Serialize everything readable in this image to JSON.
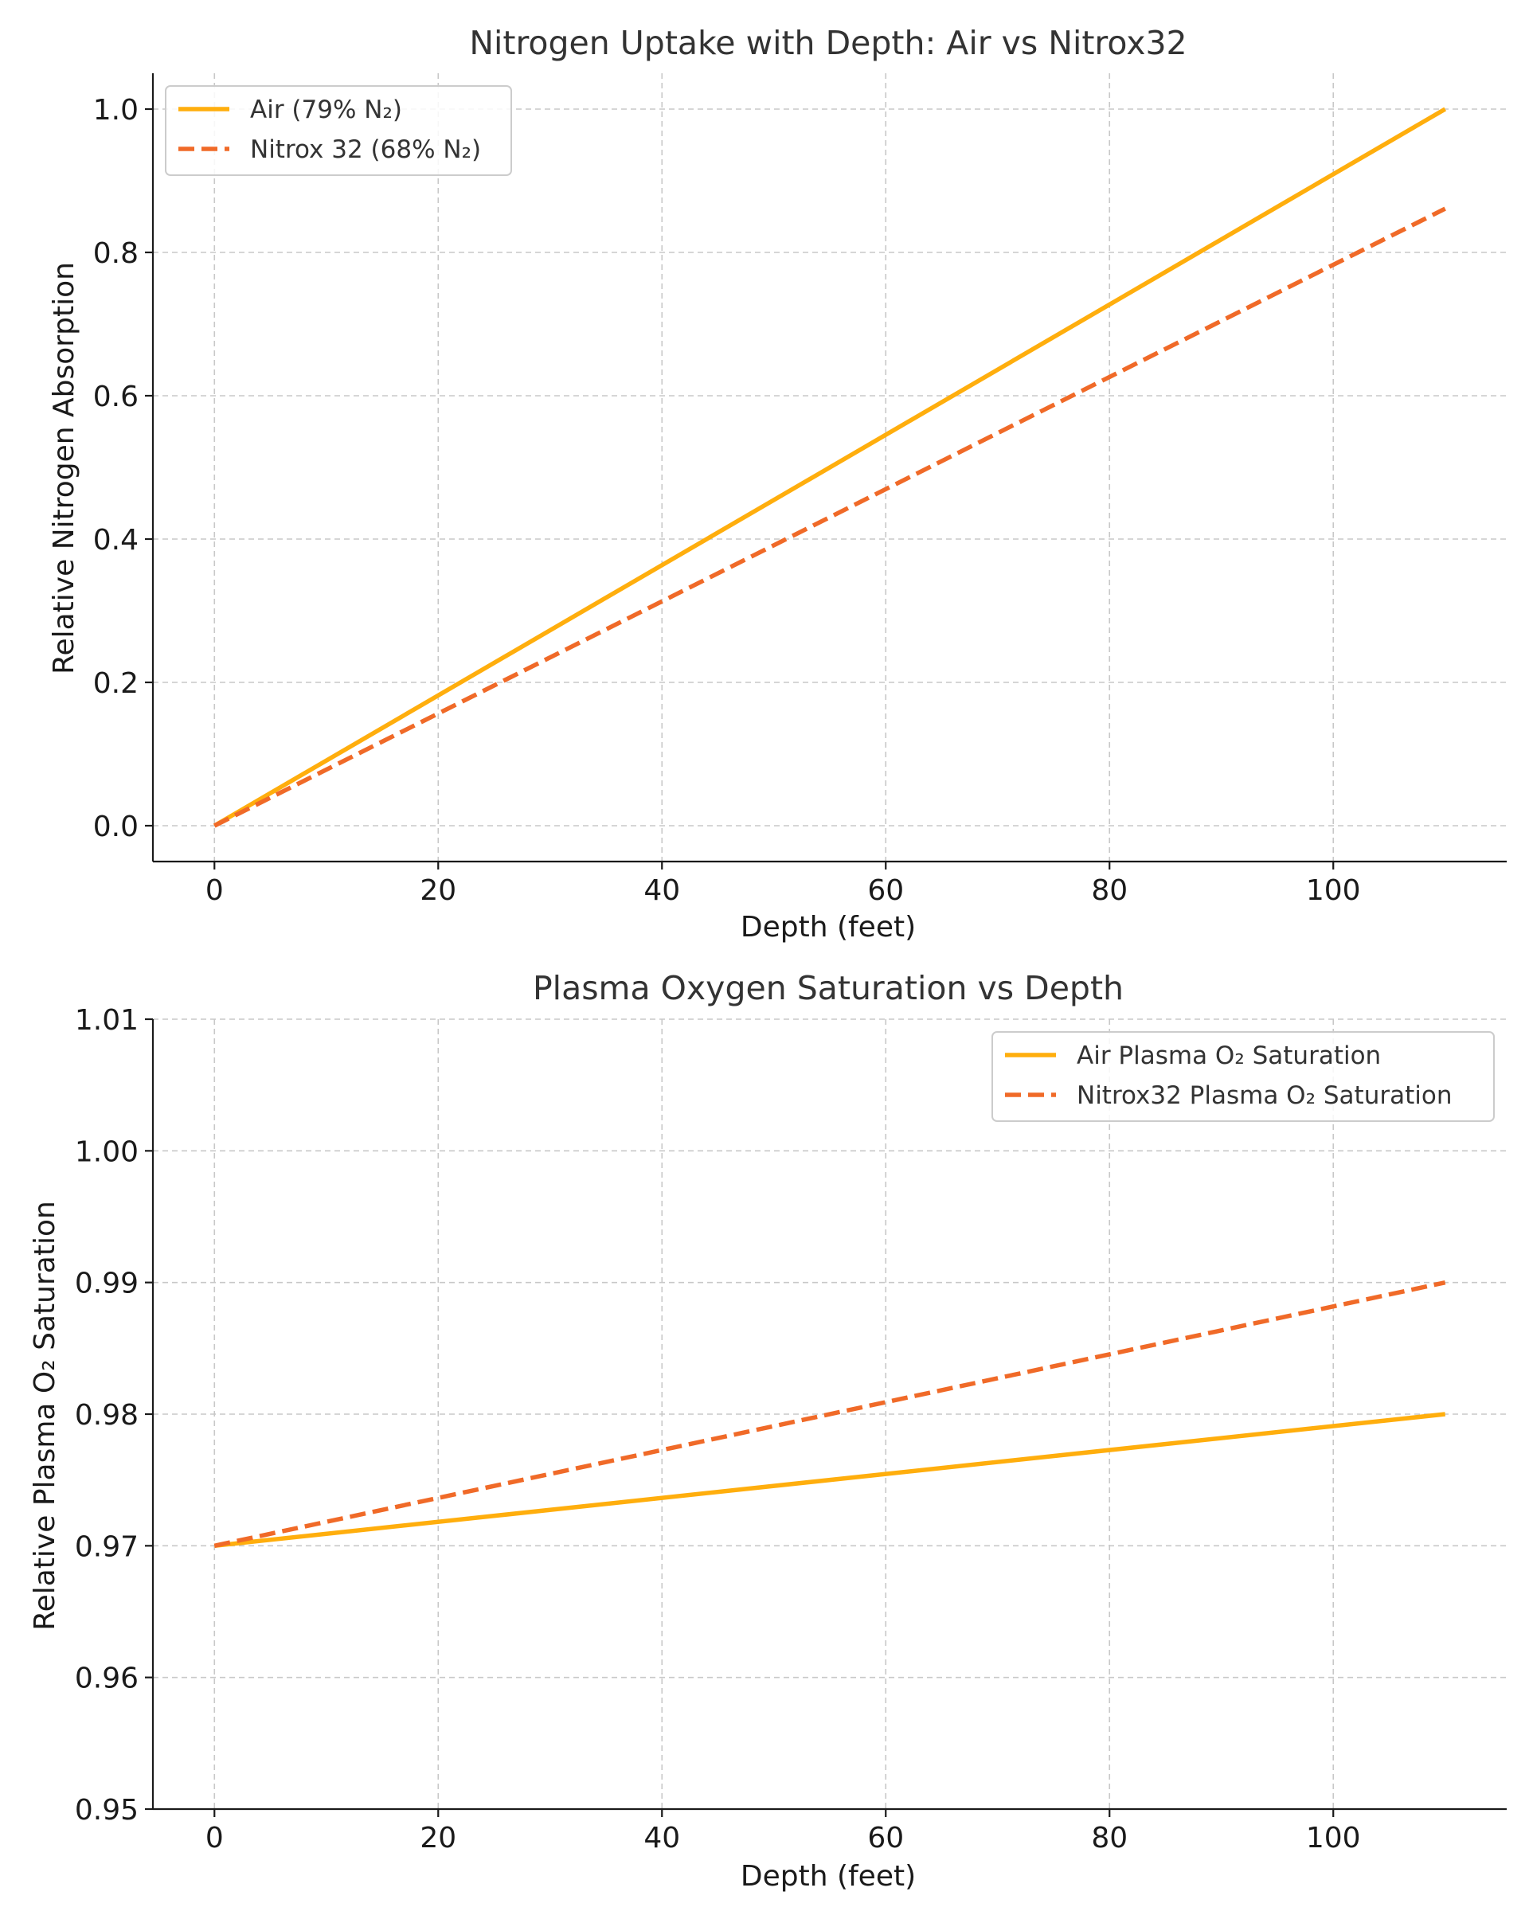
{
  "chart_data": [
    {
      "type": "line",
      "title": "Nitrogen Uptake with Depth: Air vs Nitrox32",
      "xlabel": "Depth (feet)",
      "ylabel": "Relative Nitrogen Absorption",
      "xlim": [
        -5.5,
        115.5
      ],
      "ylim": [
        -0.05,
        1.05
      ],
      "xticks": [
        0,
        20,
        40,
        60,
        80,
        100
      ],
      "yticks": [
        0.0,
        0.2,
        0.4,
        0.6,
        0.8,
        1.0
      ],
      "ytick_format": 1,
      "grid": true,
      "legend_position": "upper-left",
      "series": [
        {
          "name": "Air (79% N₂)",
          "color": "#ffae0d",
          "style": "solid",
          "x": [
            0,
            110
          ],
          "y": [
            0.0,
            1.0
          ]
        },
        {
          "name": "Nitrox 32 (68% N₂)",
          "color": "#f06a28",
          "style": "dashed",
          "x": [
            0,
            110
          ],
          "y": [
            0.0,
            0.861
          ]
        }
      ]
    },
    {
      "type": "line",
      "title": "Plasma Oxygen Saturation vs Depth",
      "xlabel": "Depth (feet)",
      "ylabel": "Relative Plasma O₂ Saturation",
      "xlim": [
        -5.5,
        115.5
      ],
      "ylim": [
        0.95,
        1.01
      ],
      "xticks": [
        0,
        20,
        40,
        60,
        80,
        100
      ],
      "yticks": [
        0.95,
        0.96,
        0.97,
        0.98,
        0.99,
        1.0,
        1.01
      ],
      "ytick_format": 2,
      "grid": true,
      "legend_position": "upper-right",
      "series": [
        {
          "name": "Air Plasma O₂ Saturation",
          "color": "#ffae0d",
          "style": "solid",
          "x": [
            0,
            110
          ],
          "y": [
            0.97,
            0.98
          ]
        },
        {
          "name": "Nitrox32 Plasma O₂ Saturation",
          "color": "#f06a28",
          "style": "dashed",
          "x": [
            0,
            110
          ],
          "y": [
            0.97,
            0.99
          ]
        }
      ]
    }
  ]
}
